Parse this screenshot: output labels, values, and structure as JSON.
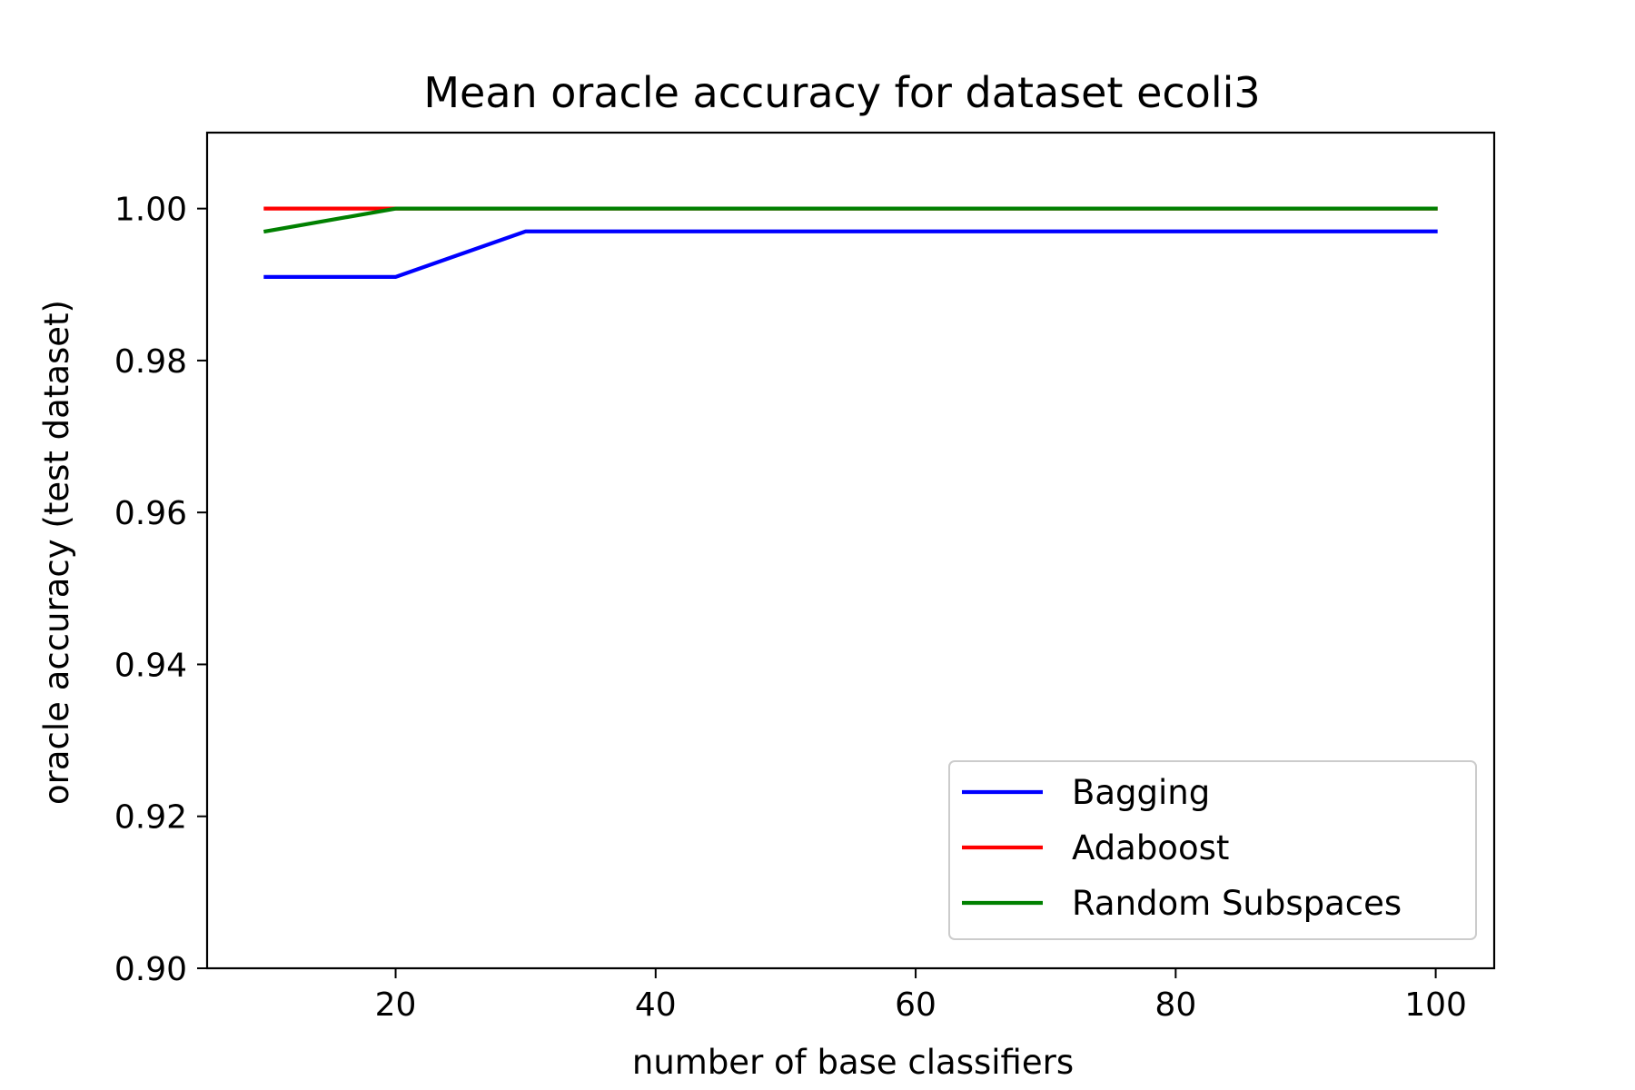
{
  "chart_data": {
    "type": "line",
    "title": "Mean oracle accuracy for dataset ecoli3",
    "xlabel": "number of base classifiers",
    "ylabel": "oracle accuracy (test dataset)",
    "xlim": [
      5.5,
      104.5
    ],
    "ylim": [
      0.9,
      1.01
    ],
    "xticks": [
      20,
      40,
      60,
      80,
      100
    ],
    "xtick_labels": [
      "20",
      "40",
      "60",
      "80",
      "100"
    ],
    "yticks": [
      0.9,
      0.92,
      0.94,
      0.96,
      0.98,
      1.0
    ],
    "ytick_labels": [
      "0.90",
      "0.92",
      "0.94",
      "0.96",
      "0.98",
      "1.00"
    ],
    "grid": false,
    "legend_position": "lower-right",
    "x": [
      10,
      20,
      30,
      40,
      50,
      60,
      70,
      80,
      90,
      100
    ],
    "series": [
      {
        "name": "Bagging",
        "color": "#0000ff",
        "values": [
          0.991,
          0.991,
          0.997,
          0.997,
          0.997,
          0.997,
          0.997,
          0.997,
          0.997,
          0.997
        ]
      },
      {
        "name": "Adaboost",
        "color": "#ff0000",
        "values": [
          1.0,
          1.0,
          1.0,
          1.0,
          1.0,
          1.0,
          1.0,
          1.0,
          1.0,
          1.0
        ]
      },
      {
        "name": "Random Subspaces",
        "color": "#008000",
        "values": [
          0.997,
          1.0,
          1.0,
          1.0,
          1.0,
          1.0,
          1.0,
          1.0,
          1.0,
          1.0
        ]
      }
    ]
  }
}
